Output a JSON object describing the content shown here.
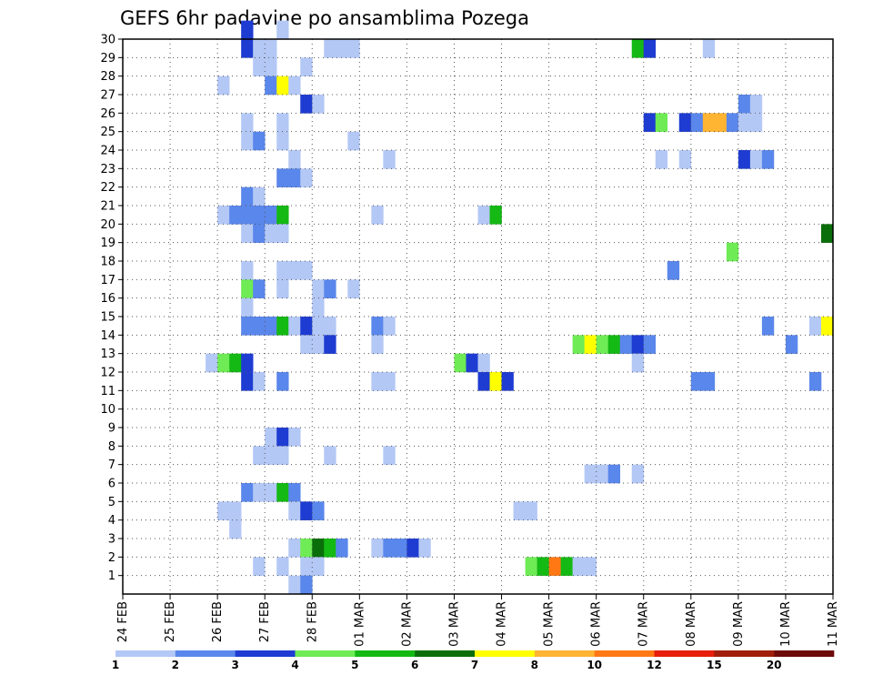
{
  "chart_data": {
    "type": "heatmap",
    "title": "GEFS 6hr padavine po ansamblima Pozega",
    "x_labels": [
      "24 FEB",
      "25 FEB",
      "26 FEB",
      "27 FEB",
      "28 FEB",
      "01 MAR",
      "02 MAR",
      "03 MAR",
      "04 MAR",
      "05 MAR",
      "06 MAR",
      "07 MAR",
      "08 MAR",
      "09 MAR",
      "10 MAR",
      "11 MAR"
    ],
    "y_labels": [
      "1",
      "2",
      "3",
      "4",
      "5",
      "6",
      "7",
      "8",
      "9",
      "10",
      "11",
      "12",
      "13",
      "14",
      "15",
      "16",
      "17",
      "18",
      "19",
      "20",
      "21",
      "22",
      "23",
      "24",
      "25",
      "26",
      "27",
      "28",
      "29",
      "30"
    ],
    "x_steps_per_day": 4,
    "y_range": [
      0,
      30
    ],
    "grid": true,
    "colorbar": {
      "labels": [
        "1",
        "2",
        "3",
        "4",
        "5",
        "6",
        "7",
        "8",
        "10",
        "12",
        "15",
        "20"
      ],
      "colors": [
        "#b4c8f6",
        "#5a87eb",
        "#1e3cd2",
        "#6eeb55",
        "#14b914",
        "#0a6e0a",
        "#ffff00",
        "#ffb432",
        "#ff7814",
        "#e61e0a",
        "#a01e0a",
        "#6e0a0a"
      ]
    },
    "cells": [
      [
        10,
        30,
        2
      ],
      [
        13,
        30,
        0
      ],
      [
        10,
        29,
        2
      ],
      [
        11,
        29,
        0
      ],
      [
        12,
        29,
        0
      ],
      [
        17,
        29,
        0
      ],
      [
        18,
        29,
        0
      ],
      [
        19,
        29,
        0
      ],
      [
        43,
        29,
        4
      ],
      [
        44,
        29,
        2
      ],
      [
        49,
        29,
        0
      ],
      [
        11,
        28,
        0
      ],
      [
        12,
        28,
        0
      ],
      [
        15,
        28,
        0
      ],
      [
        8,
        27,
        0
      ],
      [
        12,
        27,
        1
      ],
      [
        13,
        27,
        6
      ],
      [
        14,
        27,
        0
      ],
      [
        15,
        26,
        2
      ],
      [
        16,
        26,
        0
      ],
      [
        52,
        26,
        1
      ],
      [
        53,
        26,
        0
      ],
      [
        10,
        25,
        0
      ],
      [
        13,
        25,
        0
      ],
      [
        44,
        25,
        2
      ],
      [
        45,
        25,
        3
      ],
      [
        47,
        25,
        2
      ],
      [
        48,
        25,
        1
      ],
      [
        49,
        25,
        7
      ],
      [
        50,
        25,
        7
      ],
      [
        51,
        25,
        1
      ],
      [
        52,
        25,
        0
      ],
      [
        53,
        25,
        0
      ],
      [
        10,
        24,
        0
      ],
      [
        11,
        24,
        1
      ],
      [
        13,
        24,
        0
      ],
      [
        19,
        24,
        0
      ],
      [
        14,
        23,
        0
      ],
      [
        22,
        23,
        0
      ],
      [
        45,
        23,
        0
      ],
      [
        47,
        23,
        0
      ],
      [
        52,
        23,
        2
      ],
      [
        53,
        23,
        0
      ],
      [
        54,
        23,
        1
      ],
      [
        13,
        22,
        1
      ],
      [
        14,
        22,
        1
      ],
      [
        15,
        22,
        0
      ],
      [
        10,
        21,
        1
      ],
      [
        11,
        21,
        0
      ],
      [
        8,
        20,
        0
      ],
      [
        9,
        20,
        1
      ],
      [
        10,
        20,
        1
      ],
      [
        11,
        20,
        1
      ],
      [
        12,
        20,
        1
      ],
      [
        13,
        20,
        4
      ],
      [
        21,
        20,
        0
      ],
      [
        30,
        20,
        0
      ],
      [
        31,
        20,
        4
      ],
      [
        10,
        19,
        0
      ],
      [
        11,
        19,
        1
      ],
      [
        12,
        19,
        0
      ],
      [
        13,
        19,
        0
      ],
      [
        59,
        19,
        5
      ],
      [
        51,
        18,
        3
      ],
      [
        10,
        17,
        0
      ],
      [
        13,
        17,
        0
      ],
      [
        14,
        17,
        0
      ],
      [
        15,
        17,
        0
      ],
      [
        46,
        17,
        1
      ],
      [
        10,
        16,
        3
      ],
      [
        11,
        16,
        1
      ],
      [
        13,
        16,
        0
      ],
      [
        16,
        16,
        0
      ],
      [
        17,
        16,
        1
      ],
      [
        19,
        16,
        0
      ],
      [
        10,
        15,
        0
      ],
      [
        16,
        15,
        0
      ],
      [
        10,
        14,
        1
      ],
      [
        11,
        14,
        1
      ],
      [
        12,
        14,
        1
      ],
      [
        13,
        14,
        4
      ],
      [
        14,
        14,
        0
      ],
      [
        15,
        14,
        2
      ],
      [
        16,
        14,
        0
      ],
      [
        17,
        14,
        0
      ],
      [
        21,
        14,
        1
      ],
      [
        22,
        14,
        0
      ],
      [
        54,
        14,
        1
      ],
      [
        58,
        14,
        0
      ],
      [
        59,
        14,
        6
      ],
      [
        15,
        13,
        0
      ],
      [
        16,
        13,
        0
      ],
      [
        17,
        13,
        2
      ],
      [
        21,
        13,
        0
      ],
      [
        38,
        13,
        3
      ],
      [
        39,
        13,
        6
      ],
      [
        40,
        13,
        3
      ],
      [
        41,
        13,
        4
      ],
      [
        42,
        13,
        1
      ],
      [
        43,
        13,
        2
      ],
      [
        44,
        13,
        1
      ],
      [
        56,
        13,
        1
      ],
      [
        7,
        12,
        0
      ],
      [
        8,
        12,
        3
      ],
      [
        9,
        12,
        4
      ],
      [
        10,
        12,
        2
      ],
      [
        28,
        12,
        3
      ],
      [
        29,
        12,
        2
      ],
      [
        30,
        12,
        0
      ],
      [
        43,
        12,
        0
      ],
      [
        10,
        11,
        2
      ],
      [
        11,
        11,
        0
      ],
      [
        13,
        11,
        1
      ],
      [
        21,
        11,
        0
      ],
      [
        22,
        11,
        0
      ],
      [
        30,
        11,
        2
      ],
      [
        31,
        11,
        6
      ],
      [
        32,
        11,
        2
      ],
      [
        48,
        11,
        1
      ],
      [
        49,
        11,
        1
      ],
      [
        58,
        11,
        1
      ],
      [
        12,
        8,
        0
      ],
      [
        13,
        8,
        2
      ],
      [
        14,
        8,
        0
      ],
      [
        11,
        7,
        0
      ],
      [
        12,
        7,
        0
      ],
      [
        13,
        7,
        0
      ],
      [
        17,
        7,
        0
      ],
      [
        22,
        7,
        0
      ],
      [
        39,
        6,
        0
      ],
      [
        40,
        6,
        0
      ],
      [
        41,
        6,
        1
      ],
      [
        43,
        6,
        0
      ],
      [
        10,
        5,
        1
      ],
      [
        11,
        5,
        0
      ],
      [
        12,
        5,
        0
      ],
      [
        13,
        5,
        4
      ],
      [
        14,
        5,
        1
      ],
      [
        8,
        4,
        0
      ],
      [
        9,
        4,
        0
      ],
      [
        14,
        4,
        0
      ],
      [
        15,
        4,
        2
      ],
      [
        16,
        4,
        1
      ],
      [
        33,
        4,
        0
      ],
      [
        34,
        4,
        0
      ],
      [
        9,
        3,
        0
      ],
      [
        14,
        2,
        0
      ],
      [
        15,
        2,
        3
      ],
      [
        16,
        2,
        5
      ],
      [
        17,
        2,
        4
      ],
      [
        18,
        2,
        1
      ],
      [
        21,
        2,
        0
      ],
      [
        22,
        2,
        1
      ],
      [
        23,
        2,
        1
      ],
      [
        24,
        2,
        2
      ],
      [
        25,
        2,
        0
      ],
      [
        11,
        1,
        0
      ],
      [
        13,
        1,
        0
      ],
      [
        15,
        1,
        0
      ],
      [
        16,
        1,
        0
      ],
      [
        34,
        1,
        3
      ],
      [
        35,
        1,
        4
      ],
      [
        36,
        1,
        8
      ],
      [
        37,
        1,
        4
      ],
      [
        38,
        1,
        0
      ],
      [
        39,
        1,
        0
      ],
      [
        14,
        0,
        0
      ],
      [
        15,
        0,
        1
      ]
    ]
  }
}
